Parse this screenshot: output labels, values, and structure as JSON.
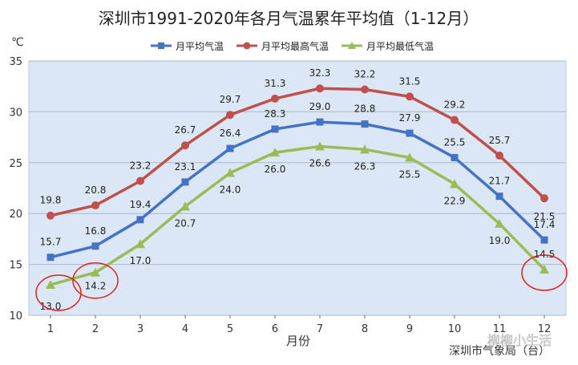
{
  "chart_data": {
    "type": "line",
    "title": "深圳市1991-2020年各月气温累年平均值（1-12月）",
    "ylabel": "℃",
    "xlabel": "月份",
    "source_note": "深圳市气象局（台）",
    "watermark": "柳柳小生活",
    "categories": [
      "1",
      "2",
      "3",
      "4",
      "5",
      "6",
      "7",
      "8",
      "9",
      "10",
      "11",
      "12"
    ],
    "ylim": [
      10,
      35
    ],
    "yticks": [
      "10",
      "15",
      "20",
      "25",
      "30",
      "35"
    ],
    "grid": true,
    "legend_position": "top",
    "series": [
      {
        "name": "月平均气温",
        "color": "#4472c4",
        "marker": "square",
        "values": [
          15.7,
          16.8,
          19.4,
          23.1,
          26.4,
          28.3,
          29.0,
          28.8,
          27.9,
          25.5,
          21.7,
          17.4
        ],
        "labels": [
          "15.7",
          "16.8",
          "19.4",
          "23.1",
          "26.4",
          "28.3",
          "29.0",
          "28.8",
          "27.9",
          "25.5",
          "21.7",
          "17.4"
        ]
      },
      {
        "name": "月平均最高气温",
        "color": "#c0504d",
        "marker": "circle",
        "values": [
          19.8,
          20.8,
          23.2,
          26.7,
          29.7,
          31.3,
          32.3,
          32.2,
          31.5,
          29.2,
          25.7,
          21.5
        ],
        "labels": [
          "19.8",
          "20.8",
          "23.2",
          "26.7",
          "29.7",
          "31.3",
          "32.3",
          "32.2",
          "31.5",
          "29.2",
          "25.7",
          "21.5"
        ]
      },
      {
        "name": "月平均最低气温",
        "color": "#9bbb59",
        "marker": "triangle",
        "values": [
          13.0,
          14.2,
          17.0,
          20.7,
          24.0,
          26.0,
          26.6,
          26.3,
          25.5,
          22.9,
          19.0,
          14.5
        ],
        "labels": [
          "13.0",
          "14.2",
          "17.0",
          "20.7",
          "24.0",
          "26.0",
          "26.6",
          "26.3",
          "25.5",
          "22.9",
          "19.0",
          "14.5"
        ]
      }
    ],
    "highlight_months": [
      "1",
      "2",
      "12"
    ],
    "highlight_color": "#e02020",
    "plot_background": "#dbe7f4"
  }
}
